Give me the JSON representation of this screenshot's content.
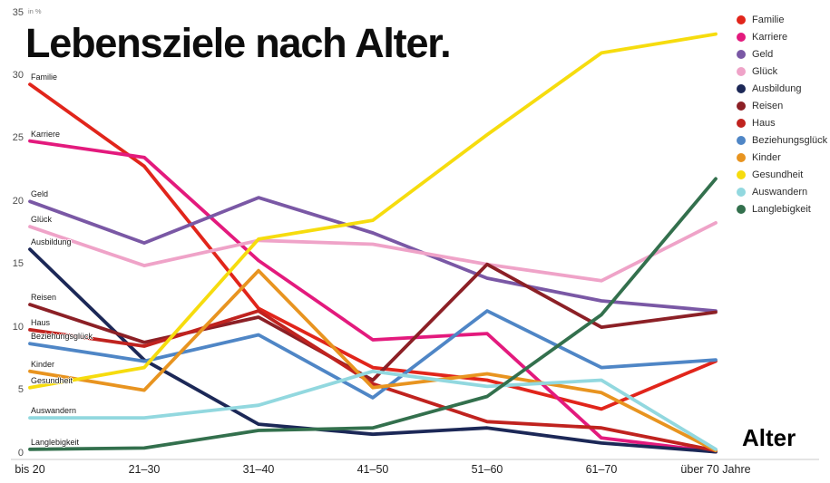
{
  "title": "Lebensziele nach Alter.",
  "chart_data": {
    "type": "line",
    "title": "Lebensziele nach Alter.",
    "xlabel": "Alter",
    "ylabel": "in %",
    "ylim": [
      0,
      35
    ],
    "y_ticks": [
      0,
      5,
      10,
      15,
      20,
      25,
      30,
      35
    ],
    "grid": false,
    "legend_position": "top-right",
    "categories": [
      "bis 20",
      "21–30",
      "31–40",
      "41–50",
      "51–60",
      "61–70",
      "über 70 Jahre"
    ],
    "series": [
      {
        "name": "Familie",
        "color": "#e1251b",
        "values": [
          29.3,
          22.8,
          11.5,
          6.8,
          5.8,
          3.5,
          7.3
        ]
      },
      {
        "name": "Karriere",
        "color": "#e31a7d",
        "values": [
          24.8,
          23.5,
          15.3,
          9.0,
          9.5,
          1.2,
          0.1
        ]
      },
      {
        "name": "Geld",
        "color": "#7a58a5",
        "values": [
          20.0,
          16.7,
          20.3,
          17.5,
          13.9,
          12.1,
          11.3
        ]
      },
      {
        "name": "Glück",
        "color": "#efa3c8",
        "values": [
          18.0,
          14.9,
          16.9,
          16.6,
          15.0,
          13.7,
          18.3
        ]
      },
      {
        "name": "Ausbildung",
        "color": "#1c2857",
        "values": [
          16.2,
          7.4,
          2.3,
          1.5,
          2.0,
          0.8,
          0.1
        ]
      },
      {
        "name": "Reisen",
        "color": "#8c2026",
        "values": [
          11.8,
          8.8,
          10.8,
          5.8,
          15.0,
          10.0,
          11.2
        ]
      },
      {
        "name": "Haus",
        "color": "#c0231f",
        "values": [
          9.8,
          8.5,
          11.3,
          5.5,
          2.5,
          2.0,
          0.2
        ]
      },
      {
        "name": "Beziehungsglück",
        "color": "#4f86c6",
        "values": [
          8.7,
          7.3,
          9.4,
          4.4,
          11.3,
          6.8,
          7.4
        ]
      },
      {
        "name": "Kinder",
        "color": "#e89420",
        "values": [
          6.5,
          5.0,
          14.5,
          5.2,
          6.3,
          4.8,
          0.2
        ]
      },
      {
        "name": "Gesundheit",
        "color": "#f6dc0e",
        "values": [
          5.2,
          6.8,
          17.0,
          18.5,
          25.3,
          31.8,
          33.3
        ]
      },
      {
        "name": "Auswandern",
        "color": "#92d8df",
        "values": [
          2.8,
          2.8,
          3.8,
          6.5,
          5.3,
          5.8,
          0.3
        ]
      },
      {
        "name": "Langlebigkeit",
        "color": "#33704d",
        "values": [
          0.3,
          0.4,
          1.8,
          2.0,
          4.5,
          11.0,
          21.8
        ]
      }
    ]
  }
}
